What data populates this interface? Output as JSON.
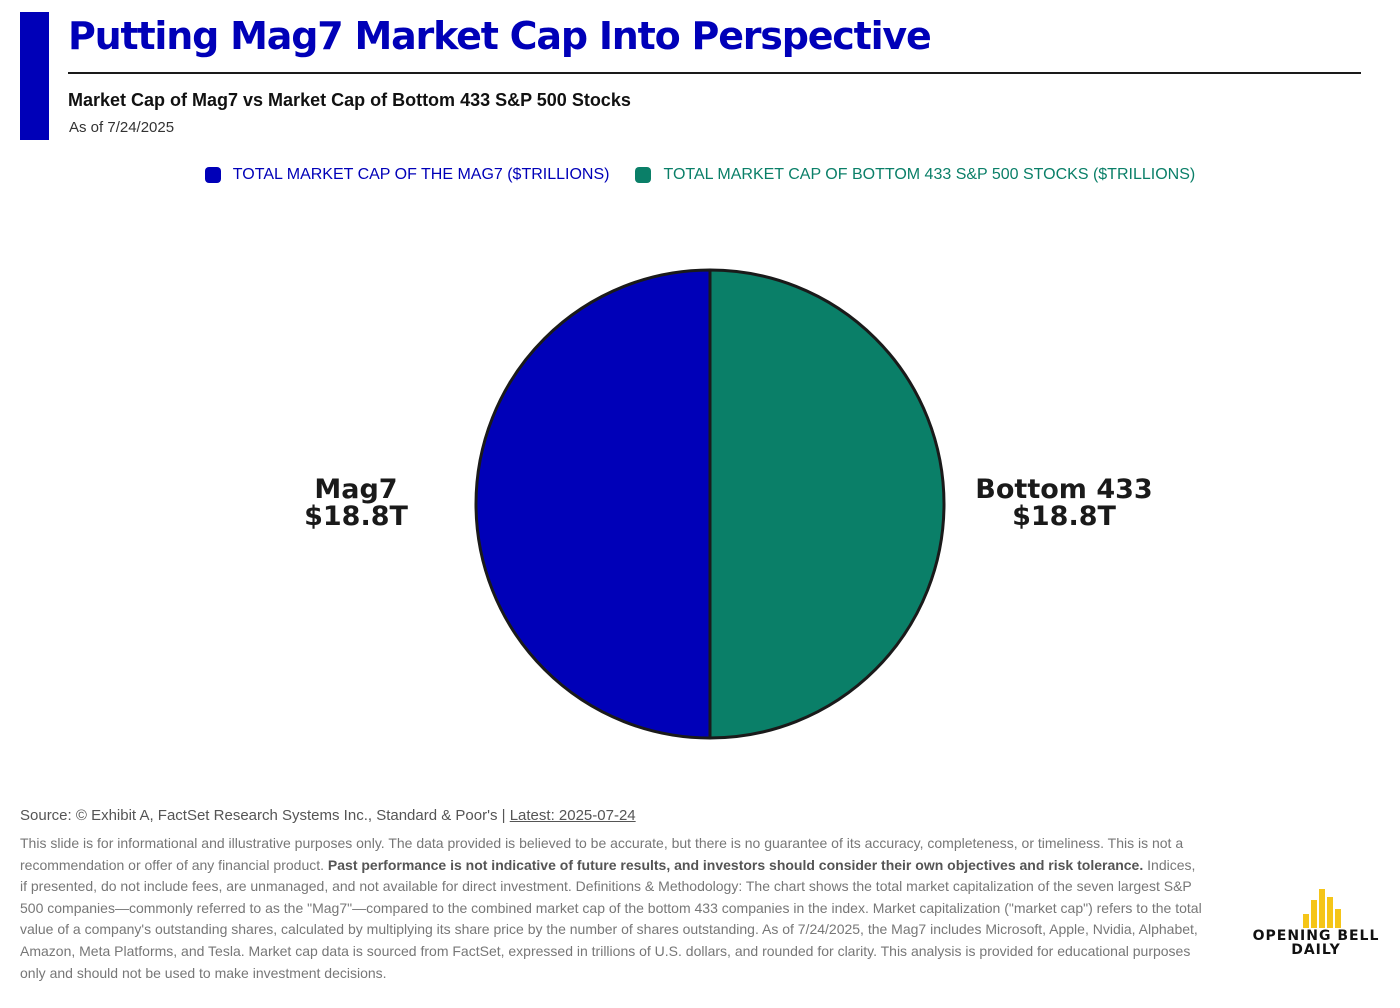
{
  "header": {
    "title": "Putting Mag7 Market Cap Into Perspective",
    "subtitle": "Market Cap of Mag7 vs Market Cap of Bottom 433 S&P 500 Stocks",
    "as_of": "As of 7/24/2025"
  },
  "colors": {
    "accent": "#0000b8",
    "mag7": "#0000b8",
    "bottom": "#0a7f68",
    "outline": "#1a1a1a"
  },
  "chart_data": {
    "type": "pie",
    "title": "Market Cap of Mag7 vs Market Cap of Bottom 433 S&P 500 Stocks",
    "legend_position": "top",
    "legend": [
      {
        "name": "TOTAL MARKET CAP OF THE MAG7 ($TRILLIONS)",
        "color": "#0000b8"
      },
      {
        "name": "TOTAL MARKET CAP OF BOTTOM 433 S&P 500 STOCKS ($TRILLIONS)",
        "color": "#0a7f68"
      }
    ],
    "slices": [
      {
        "label": "Mag7",
        "value": 18.8,
        "value_label": "$18.8T",
        "color": "#0000b8"
      },
      {
        "label": "Bottom 433",
        "value": 18.8,
        "value_label": "$18.8T",
        "color": "#0a7f68"
      }
    ]
  },
  "footer": {
    "source_prefix": "Source: © Exhibit A, FactSet Research Systems Inc., Standard & Poor's | ",
    "latest": "Latest: 2025-07-24",
    "disclaimer_1": "This slide is for informational and illustrative purposes only. The data provided is believed to be accurate, but there is no guarantee of its accuracy, completeness, or timeliness. This is not a recommendation or offer of any financial product. ",
    "disclaimer_bold": "Past performance is not indicative of future results, and investors should consider their own objectives and risk tolerance.",
    "disclaimer_2": " Indices, if presented, do not include fees, are unmanaged, and not available for direct investment. Definitions & Methodology: The chart shows the total market capitalization of the seven largest S&P 500 companies—commonly referred to as the \"Mag7\"—compared to the combined market cap of the bottom 433 companies in the index. Market capitalization (\"market cap\") refers to the total value of a company's outstanding shares, calculated by multiplying its share price by the number of shares outstanding. As of 7/24/2025, the Mag7 includes Microsoft, Apple, Nvidia, Alphabet, Amazon, Meta Platforms, and Tesla. Market cap data is sourced from FactSet, expressed in trillions of U.S. dollars, and rounded for clarity. This analysis is provided for educational purposes only and should not be used to make investment decisions."
  },
  "logo": {
    "line1": "OPENING BELL",
    "line2": "DAILY",
    "bar_color": "#f5c518"
  }
}
